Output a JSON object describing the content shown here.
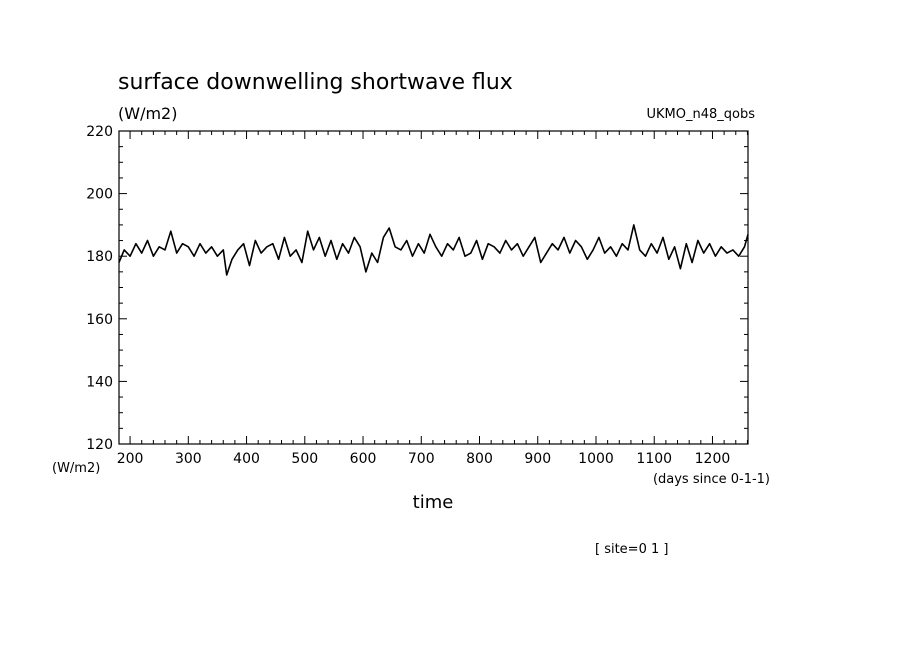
{
  "chart_data": {
    "type": "line",
    "title": "surface downwelling shortwave flux",
    "units_label": "(W/m2)",
    "model_label": "UKMO_n48_qobs",
    "ylabel": "(W/m2)",
    "xlabel": "time",
    "xunits": "(days since 0-1-1)",
    "site_label": "[ site=0 1 ]",
    "xlim": [
      181,
      1261
    ],
    "ylim": [
      120,
      220
    ],
    "xticks": [
      200,
      300,
      400,
      500,
      600,
      700,
      800,
      900,
      1000,
      1100,
      1200
    ],
    "yticks": [
      120,
      140,
      160,
      180,
      200,
      220
    ],
    "grid": false,
    "line_color": "#000000",
    "series": [
      {
        "x": [
          181,
          190,
          200,
          210,
          220,
          230,
          240,
          250,
          260,
          270,
          280,
          290,
          300,
          310,
          320,
          330,
          340,
          350,
          360,
          366,
          375,
          385,
          395,
          405,
          415,
          425,
          435,
          445,
          455,
          465,
          475,
          485,
          495,
          505,
          515,
          525,
          535,
          545,
          555,
          565,
          575,
          585,
          595,
          605,
          615,
          625,
          635,
          645,
          655,
          665,
          675,
          685,
          695,
          705,
          715,
          725,
          735,
          745,
          755,
          765,
          775,
          785,
          795,
          805,
          815,
          825,
          835,
          845,
          855,
          865,
          875,
          885,
          895,
          905,
          915,
          925,
          935,
          945,
          955,
          965,
          975,
          985,
          995,
          1005,
          1015,
          1025,
          1035,
          1045,
          1055,
          1065,
          1075,
          1085,
          1095,
          1105,
          1115,
          1125,
          1135,
          1145,
          1155,
          1165,
          1175,
          1185,
          1195,
          1205,
          1215,
          1225,
          1235,
          1245,
          1255,
          1261
        ],
        "y": [
          178,
          182,
          180,
          184,
          181,
          185,
          180,
          183,
          182,
          188,
          181,
          184,
          183,
          180,
          184,
          181,
          183,
          180,
          182,
          174,
          179,
          182,
          184,
          177,
          185,
          181,
          183,
          184,
          179,
          186,
          180,
          182,
          178,
          188,
          182,
          186,
          180,
          185,
          179,
          184,
          181,
          186,
          183,
          175,
          181,
          178,
          186,
          189,
          183,
          182,
          185,
          180,
          184,
          181,
          187,
          183,
          180,
          184,
          182,
          186,
          180,
          181,
          185,
          179,
          184,
          183,
          181,
          185,
          182,
          184,
          180,
          183,
          186,
          178,
          181,
          184,
          182,
          186,
          181,
          185,
          183,
          179,
          182,
          186,
          181,
          183,
          180,
          184,
          182,
          190,
          182,
          180,
          184,
          181,
          186,
          179,
          183,
          176,
          184,
          178,
          185,
          181,
          184,
          180,
          183,
          181,
          182,
          180,
          183,
          187
        ]
      }
    ]
  }
}
